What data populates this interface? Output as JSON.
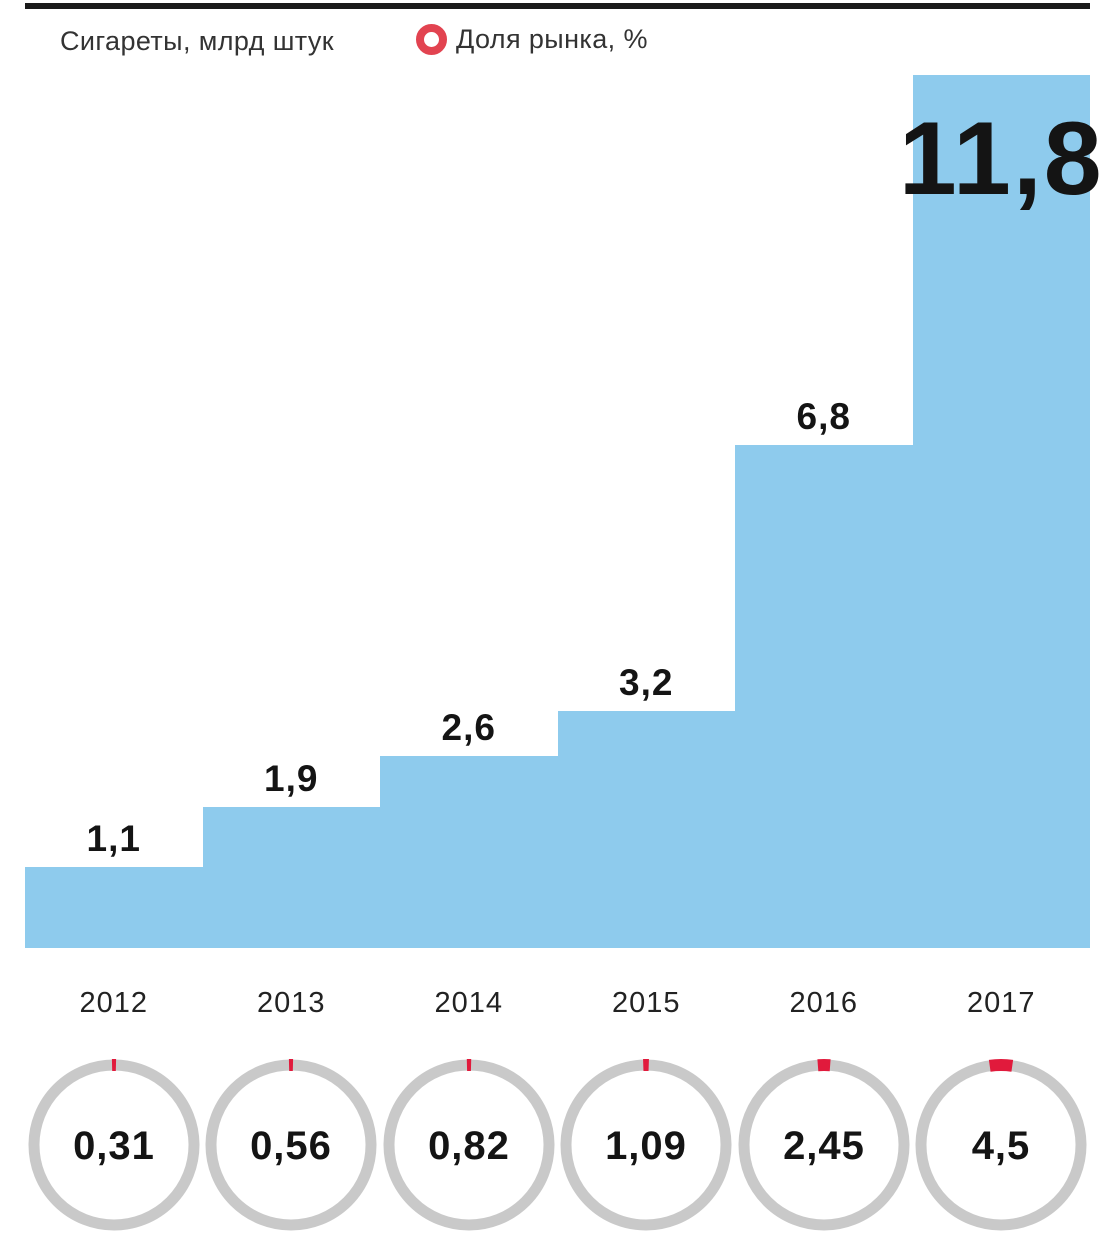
{
  "legend": {
    "items": [
      {
        "label": "Сигареты, млрд штук",
        "swatch": "square",
        "color": "#8ecbed"
      },
      {
        "label": "Доля рынка, %",
        "swatch": "ring",
        "color": "#e24350"
      }
    ]
  },
  "colors": {
    "bar_blue": "#8ecbed",
    "ring_gray": "#c9c9c9",
    "ring_red": "#e11a3c",
    "legend_ring_red": "#e24350",
    "text_black": "#141414",
    "top_rule_black": "#1a1a1a"
  },
  "chart_data": {
    "type": "bar",
    "subtype": "step-bars-with-donut-indicators",
    "categories": [
      "2012",
      "2013",
      "2014",
      "2015",
      "2016",
      "2017"
    ],
    "series": [
      {
        "name": "Сигареты, млрд штук",
        "type": "bar",
        "values": [
          1.1,
          1.9,
          2.6,
          3.2,
          6.8,
          11.8
        ],
        "value_labels": [
          "1,1",
          "1,9",
          "2,6",
          "3,2",
          "6,8",
          "11,8"
        ],
        "color": "#8ecbed"
      },
      {
        "name": "Доля рынка, %",
        "type": "donut",
        "values": [
          0.31,
          0.56,
          0.82,
          1.09,
          2.45,
          4.5
        ],
        "value_labels": [
          "0,31",
          "0,56",
          "0,82",
          "1,09",
          "2,45",
          "4,5"
        ],
        "ring_color": "#c9c9c9",
        "arc_color": "#e11a3c",
        "arc_scale": "percent-of-full-circle"
      }
    ],
    "title": "",
    "xlabel": "",
    "ylabel": "",
    "ylim": [
      0,
      11.8
    ],
    "grid": false,
    "legend_position": "top-left",
    "bars_touching": true,
    "last_bar_label_inside": true
  }
}
